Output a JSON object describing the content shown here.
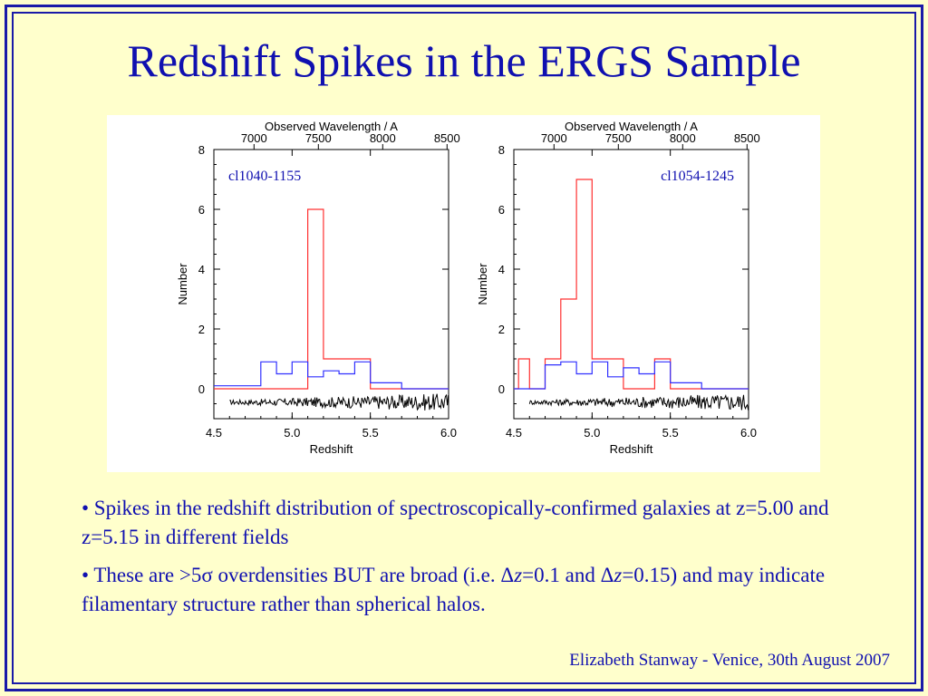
{
  "slide": {
    "title": "Redshift Spikes in the ERGS Sample",
    "footer": "Elizabeth Stanway - Venice, 30th August 2007"
  },
  "bullets": [
    {
      "parts": [
        "• Spikes in the redshift distribution of spectroscopically-confirmed galaxies at z=5.00 and z=5.15 in different fields"
      ]
    },
    {
      "parts": [
        "• These are >5σ overdensities BUT are broad    (i.e. Δ",
        "z",
        "=0.1 and Δ",
        "z",
        "=0.15) and may indicate filamentary structure rather than spherical halos."
      ]
    }
  ],
  "colors": {
    "title": "#1010b0",
    "background": "#ffffcc",
    "border": "#1a1aa8",
    "spike_histogram": "#ff3030",
    "blue_histogram": "#3030ff",
    "spectrum": "#000000"
  },
  "chart_data": [
    {
      "type": "line",
      "field_label": "cl1040-1155",
      "title": "",
      "top_axis_label": "Observed Wavelength / A",
      "top_ticks": [
        7000,
        7500,
        8000,
        8500
      ],
      "xlabel": "Redshift",
      "ylabel": "Number",
      "xlim": [
        4.5,
        6.0
      ],
      "ylim": [
        -1,
        8
      ],
      "x_ticks": [
        "4.5",
        "5.0",
        "5.5",
        "6.0"
      ],
      "y_ticks": [
        "0",
        "2",
        "4",
        "6",
        "8"
      ],
      "series": [
        {
          "color": "#ff3030",
          "steps": [
            [
              4.5,
              0
            ],
            [
              5.1,
              0
            ],
            [
              5.1,
              6
            ],
            [
              5.2,
              6
            ],
            [
              5.2,
              1
            ],
            [
              5.4,
              1
            ],
            [
              5.4,
              1
            ],
            [
              5.5,
              1
            ],
            [
              5.5,
              0
            ],
            [
              6.0,
              0
            ]
          ]
        },
        {
          "color": "#3030ff",
          "steps": [
            [
              4.5,
              0.1
            ],
            [
              4.8,
              0.1
            ],
            [
              4.8,
              0.9
            ],
            [
              4.9,
              0.9
            ],
            [
              4.9,
              0.5
            ],
            [
              5.0,
              0.5
            ],
            [
              5.0,
              0.9
            ],
            [
              5.1,
              0.9
            ],
            [
              5.1,
              0.4
            ],
            [
              5.2,
              0.4
            ],
            [
              5.2,
              0.6
            ],
            [
              5.3,
              0.6
            ],
            [
              5.3,
              0.5
            ],
            [
              5.4,
              0.5
            ],
            [
              5.4,
              0.9
            ],
            [
              5.5,
              0.9
            ],
            [
              5.5,
              0.2
            ],
            [
              5.7,
              0.2
            ],
            [
              5.7,
              0.0
            ],
            [
              6.0,
              0.0
            ]
          ]
        }
      ],
      "spectrum": {
        "color": "#000000",
        "baseline": -0.45,
        "amplitude": 0.25
      }
    },
    {
      "type": "line",
      "field_label": "cl1054-1245",
      "title": "",
      "top_axis_label": "Observed Wavelength / A",
      "top_ticks": [
        7000,
        7500,
        8000,
        8500
      ],
      "xlabel": "Redshift",
      "ylabel": "Number",
      "xlim": [
        4.5,
        6.0
      ],
      "ylim": [
        -1,
        8
      ],
      "x_ticks": [
        "4.5",
        "5.0",
        "5.5",
        "6.0"
      ],
      "y_ticks": [
        "0",
        "2",
        "4",
        "6",
        "8"
      ],
      "series": [
        {
          "color": "#ff3030",
          "steps": [
            [
              4.5,
              0
            ],
            [
              4.53,
              0
            ],
            [
              4.53,
              1
            ],
            [
              4.6,
              1
            ],
            [
              4.6,
              0
            ],
            [
              4.7,
              0
            ],
            [
              4.7,
              1
            ],
            [
              4.8,
              1
            ],
            [
              4.8,
              3
            ],
            [
              4.9,
              3
            ],
            [
              4.9,
              7
            ],
            [
              5.0,
              7
            ],
            [
              5.0,
              1
            ],
            [
              5.2,
              1
            ],
            [
              5.2,
              0
            ],
            [
              5.4,
              0
            ],
            [
              5.4,
              1
            ],
            [
              5.5,
              1
            ],
            [
              5.5,
              0
            ],
            [
              6.0,
              0
            ]
          ]
        },
        {
          "color": "#3030ff",
          "steps": [
            [
              4.5,
              0
            ],
            [
              4.7,
              0
            ],
            [
              4.7,
              0.8
            ],
            [
              4.8,
              0.8
            ],
            [
              4.8,
              0.9
            ],
            [
              4.9,
              0.9
            ],
            [
              4.9,
              0.5
            ],
            [
              5.0,
              0.5
            ],
            [
              5.0,
              0.9
            ],
            [
              5.1,
              0.9
            ],
            [
              5.1,
              0.4
            ],
            [
              5.2,
              0.4
            ],
            [
              5.2,
              0.7
            ],
            [
              5.3,
              0.7
            ],
            [
              5.3,
              0.5
            ],
            [
              5.4,
              0.5
            ],
            [
              5.4,
              0.9
            ],
            [
              5.5,
              0.9
            ],
            [
              5.5,
              0.2
            ],
            [
              5.7,
              0.2
            ],
            [
              5.7,
              0.0
            ],
            [
              6.0,
              0.0
            ]
          ]
        }
      ],
      "spectrum": {
        "color": "#000000",
        "baseline": -0.45,
        "amplitude": 0.25
      }
    }
  ]
}
